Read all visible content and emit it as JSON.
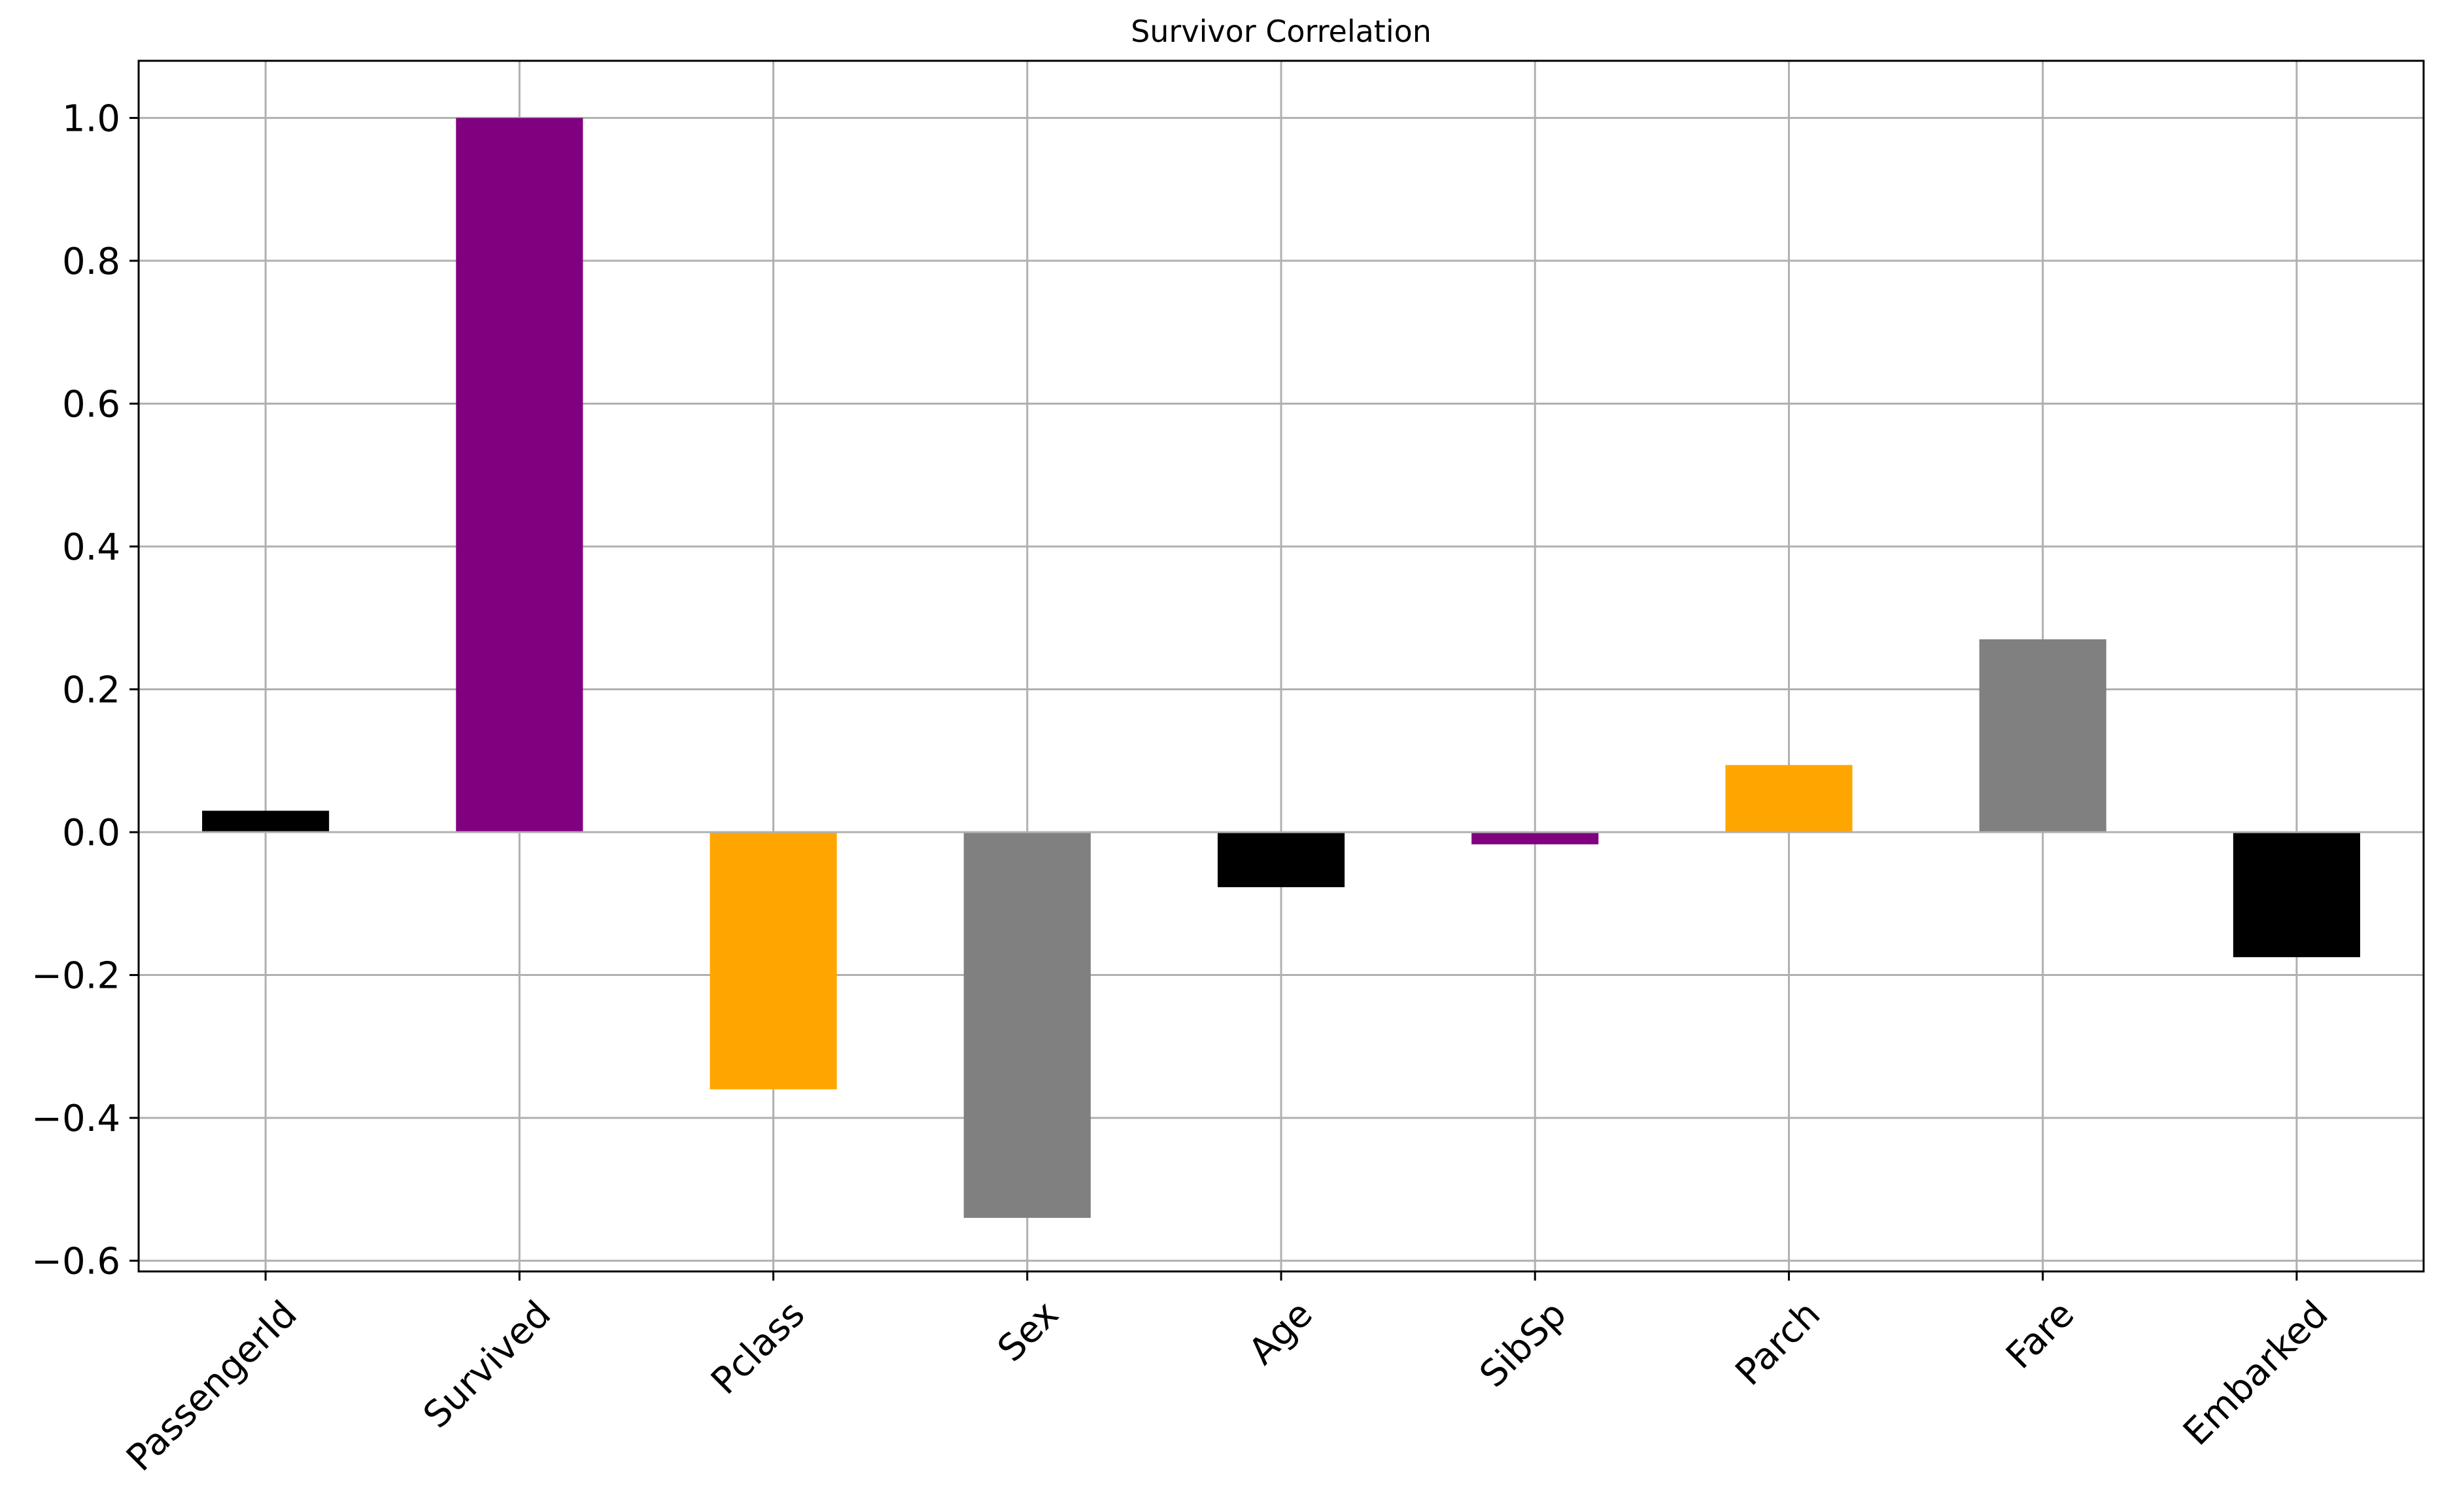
{
  "chart_data": {
    "type": "bar",
    "title": "Survivor Correlation",
    "xlabel": "",
    "ylabel": "",
    "categories": [
      "PassengerId",
      "Survived",
      "Pclass",
      "Sex",
      "Age",
      "SibSp",
      "Parch",
      "Fare",
      "Embarked"
    ],
    "values": [
      0.03,
      1.0,
      -0.36,
      -0.54,
      -0.077,
      -0.017,
      0.094,
      0.27,
      -0.175
    ],
    "bar_colors": [
      "#000000",
      "#800080",
      "#ffa500",
      "#808080",
      "#000000",
      "#800080",
      "#ffa500",
      "#808080",
      "#000000"
    ],
    "ylim": [
      -0.615,
      1.08
    ],
    "yticks": [
      -0.6,
      -0.4,
      -0.2,
      0.0,
      0.2,
      0.4,
      0.6,
      0.8,
      1.0
    ],
    "ytick_labels": [
      "−0.6",
      "−0.4",
      "−0.2",
      "0.0",
      "0.2",
      "0.4",
      "0.6",
      "0.8",
      "1.0"
    ],
    "xtick_rotation_deg": 45,
    "grid": true,
    "grid_color": "#b0b0b0",
    "legend": "none"
  }
}
